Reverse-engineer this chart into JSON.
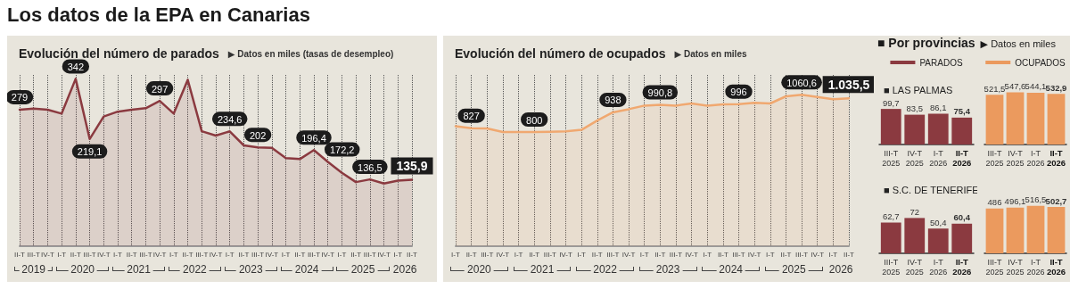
{
  "chart_data": [
    {
      "type": "other",
      "title": "Los datos de la EPA en Canarias"
    },
    {
      "type": "area",
      "title": "Evolución del número de parados",
      "subtitle": "▶ Datos en miles (tasas de desempleo)",
      "categories": [
        "II-T",
        "III-T",
        "IV-T",
        "I-T",
        "II-T",
        "III-T",
        "IV-T",
        "I-T",
        "II-T",
        "III-T",
        "IV-T",
        "I-T",
        "II-T",
        "III-T",
        "IV-T",
        "I-T",
        "II-T",
        "III-T",
        "IV-T",
        "I-T",
        "II-T",
        "III-T",
        "IV-T",
        "I-T",
        "II-T",
        "III-T",
        "IV-T",
        "I-T",
        "II-T"
      ],
      "values": [
        279,
        281,
        279,
        271,
        342,
        219.1,
        265,
        275,
        279,
        282,
        297,
        271,
        340,
        235,
        226,
        234.6,
        206,
        202,
        201,
        180,
        178,
        196.4,
        172.2,
        150,
        131,
        136.5,
        128,
        134,
        135.9
      ],
      "value_labels": [
        "279",
        null,
        null,
        null,
        "342",
        "219,1",
        null,
        null,
        null,
        null,
        "297",
        null,
        null,
        null,
        null,
        "234,6",
        null,
        "202",
        null,
        null,
        null,
        "196,4",
        "172,2",
        null,
        null,
        "136,5",
        null,
        null,
        "135,9"
      ],
      "color": "#8b3a40",
      "grid": "x",
      "annotations": [
        "2019",
        "2020",
        "2021",
        "2022",
        "2023",
        "2024",
        "2025",
        "2026"
      ]
    },
    {
      "type": "area",
      "title": "Evolución del número de ocupados",
      "subtitle": "▶ Datos en miles",
      "categories": [
        "I-T",
        "II-T",
        "III-T",
        "IV-T",
        "I-T",
        "II-T",
        "III-T",
        "IV-T",
        "I-T",
        "II-T",
        "III-T",
        "IV-T",
        "I-T",
        "II-T",
        "III-T",
        "IV-T",
        "I-T",
        "II-T",
        "III-T",
        "IV-T",
        "I-T",
        "II-T",
        "III-T",
        "IV-T",
        "I-T",
        "II-T"
      ],
      "values": [
        840,
        827,
        825,
        800,
        800,
        800,
        802,
        805,
        815,
        880,
        938,
        960,
        985,
        990.8,
        985,
        1000,
        985,
        993,
        996,
        1005,
        1000,
        1050,
        1060.6,
        1045,
        1030,
        1035.5
      ],
      "value_labels": [
        null,
        "827",
        null,
        null,
        null,
        "800",
        null,
        null,
        null,
        null,
        "938",
        null,
        null,
        "990,8",
        null,
        null,
        null,
        null,
        "996",
        null,
        null,
        null,
        "1060,6",
        null,
        null,
        "1.035,5"
      ],
      "color": "#f0a870",
      "grid": "x",
      "annotations": [
        "2020",
        "2021",
        "2022",
        "2023",
        "2024",
        "2025",
        "2026"
      ]
    },
    {
      "type": "other",
      "title": "■ Por provincias",
      "subtitle": "▶ Datos en miles"
    },
    {
      "type": "bar",
      "title": "■ LAS PALMAS",
      "categories": [
        "III-T\n2025",
        "IV-T\n2025",
        "I-T\n2026",
        "II-T\n2026"
      ],
      "legend": "top",
      "series": [
        {
          "name": "PARADOS",
          "color": "#8b3a40",
          "values": [
            99.7,
            83.5,
            86.1,
            75.4
          ],
          "value_labels": [
            "99,7",
            "83,5",
            "86,1",
            "75,4"
          ]
        }
      ]
    },
    {
      "type": "bar",
      "categories": [
        "III-T\n2025",
        "IV-T\n2025",
        "I-T\n2026",
        "II-T\n2026"
      ],
      "legend": "top",
      "series": [
        {
          "name": "OCUPADOS",
          "color": "#eb9a5e",
          "values": [
            521.5,
            547.6,
            544.1,
            532.9
          ],
          "value_labels": [
            "521,5",
            "547,6",
            "544,1",
            "532,9"
          ]
        }
      ]
    },
    {
      "type": "bar",
      "title": "■ S.C. DE TENERIFE",
      "categories": [
        "III-T\n2025",
        "IV-T\n2025",
        "I-T\n2026",
        "II-T\n2026"
      ],
      "series": [
        {
          "color": "#8b3a40",
          "values": [
            62.7,
            72,
            50.4,
            60.4
          ],
          "value_labels": [
            "62,7",
            "72",
            "50,4",
            "60,4"
          ]
        }
      ]
    },
    {
      "type": "bar",
      "categories": [
        "III-T\n2025",
        "IV-T\n2025",
        "I-T\n2026",
        "II-T\n2026"
      ],
      "series": [
        {
          "color": "#eb9a5e",
          "values": [
            486,
            496.1,
            516.5,
            502.7
          ],
          "value_labels": [
            "486",
            "496,1",
            "516,5",
            "502,7"
          ]
        }
      ]
    }
  ]
}
